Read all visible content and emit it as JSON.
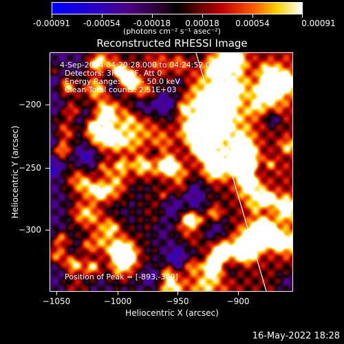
{
  "colorbar": {
    "tick_labels": [
      "-0.00091",
      "-0.00054",
      "-0.00018",
      "0.00018",
      "0.00054",
      "0.00091"
    ],
    "units": "(photons cm⁻² s⁻¹ asec⁻²)"
  },
  "plot": {
    "title": "Reconstructed RHESSI Image",
    "xlabel": "Heliocentric X (arcsec)",
    "ylabel": "Heliocentric Y (arcsec)",
    "x_ticks": [
      "−1050",
      "−1000",
      "−950",
      "−900"
    ],
    "y_ticks": [
      "−200",
      "−250",
      "−300"
    ],
    "info_lines": [
      "4-Sep-2014 04:20:28.000 to 04:24:52.000",
      "Detectors: 3F 6F 9F, Att 0",
      "Energy Range: 25.0 - 50.0 keV",
      "Clean     Total counts: 2.51E+03"
    ],
    "peak_text": "Position of Peak = [-893,-309]"
  },
  "footer": {
    "date": "16-May-2022 18:28"
  }
}
